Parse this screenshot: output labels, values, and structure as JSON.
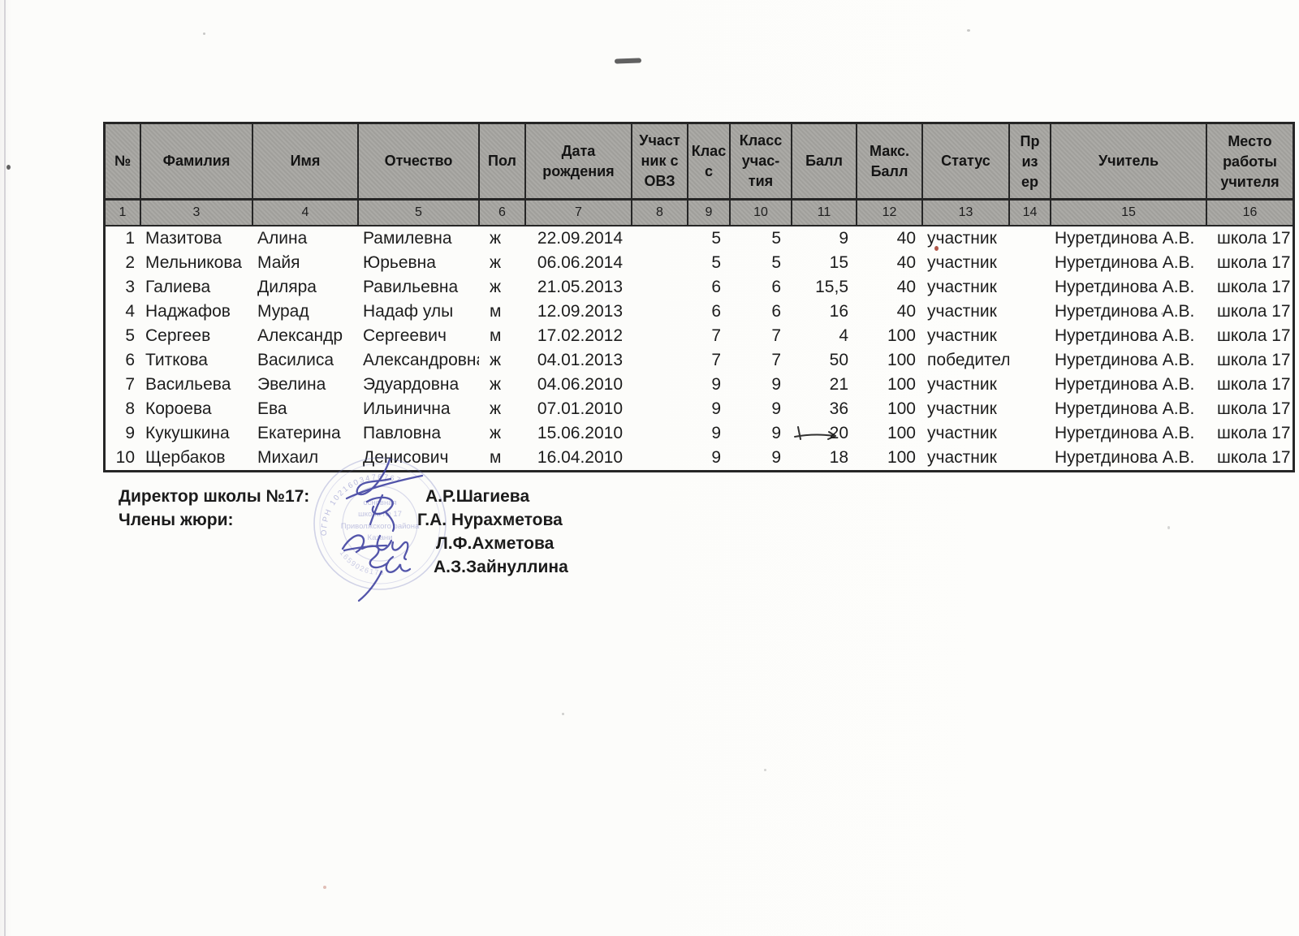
{
  "table": {
    "columns": [
      {
        "id": "n",
        "label": "№",
        "num": "1"
      },
      {
        "id": "surname",
        "label": "Фамилия",
        "num": "3"
      },
      {
        "id": "name",
        "label": "Имя",
        "num": "4"
      },
      {
        "id": "patronymic",
        "label": "Отчество",
        "num": "5"
      },
      {
        "id": "gender",
        "label": "Пол",
        "num": "6"
      },
      {
        "id": "birth_date",
        "label": "Дата рождения",
        "num": "7"
      },
      {
        "id": "ovz",
        "label": "Участник с ОВЗ",
        "num": "8"
      },
      {
        "id": "grade",
        "label": "Класс",
        "num": "9"
      },
      {
        "id": "participation_grade",
        "label": "Класс учас-тия",
        "num": "10"
      },
      {
        "id": "score",
        "label": "Балл",
        "num": "11"
      },
      {
        "id": "max_score",
        "label": "Макс. Балл",
        "num": "12"
      },
      {
        "id": "status",
        "label": "Статус",
        "num": "13"
      },
      {
        "id": "prize",
        "label": "Призер",
        "num": "14"
      },
      {
        "id": "teacher",
        "label": "Учитель",
        "num": "15"
      },
      {
        "id": "workplace",
        "label": "Место работы учителя",
        "num": "16"
      }
    ],
    "rows": [
      {
        "n": "1",
        "surname": "Мазитова",
        "name": "Алина",
        "patronymic": "Рамилевна",
        "gender": "ж",
        "birth_date": "22.09.2014",
        "ovz": "",
        "grade": "5",
        "participation_grade": "5",
        "score": "9",
        "max_score": "40",
        "status": "участник",
        "prize": "",
        "teacher": "Нуретдинова А.В.",
        "workplace": "школа 17"
      },
      {
        "n": "2",
        "surname": "Мельникова",
        "name": "Майя",
        "patronymic": "Юрьевна",
        "gender": "ж",
        "birth_date": "06.06.2014",
        "ovz": "",
        "grade": "5",
        "participation_grade": "5",
        "score": "15",
        "max_score": "40",
        "status": "участник",
        "prize": "",
        "teacher": "Нуретдинова А.В.",
        "workplace": "школа 17"
      },
      {
        "n": "3",
        "surname": "Галиева",
        "name": "Диляра",
        "patronymic": "Равильевна",
        "gender": "ж",
        "birth_date": "21.05.2013",
        "ovz": "",
        "grade": "6",
        "participation_grade": "6",
        "score": "15,5",
        "max_score": "40",
        "status": "участник",
        "prize": "",
        "teacher": "Нуретдинова А.В.",
        "workplace": "школа 17"
      },
      {
        "n": "4",
        "surname": "Наджафов",
        "name": "Мурад",
        "patronymic": "Надаф улы",
        "gender": "м",
        "birth_date": "12.09.2013",
        "ovz": "",
        "grade": "6",
        "participation_grade": "6",
        "score": "16",
        "max_score": "40",
        "status": "участник",
        "prize": "",
        "teacher": "Нуретдинова А.В.",
        "workplace": "школа 17"
      },
      {
        "n": "5",
        "surname": "Сергеев",
        "name": "Александр",
        "patronymic": "Сергеевич",
        "gender": "м",
        "birth_date": "17.02.2012",
        "ovz": "",
        "grade": "7",
        "participation_grade": "7",
        "score": "4",
        "max_score": "100",
        "status": "участник",
        "prize": "",
        "teacher": "Нуретдинова А.В.",
        "workplace": "школа 17"
      },
      {
        "n": "6",
        "surname": "Титкова",
        "name": "Василиса",
        "patronymic": "Александровна",
        "gender": "ж",
        "birth_date": "04.01.2013",
        "ovz": "",
        "grade": "7",
        "participation_grade": "7",
        "score": "50",
        "max_score": "100",
        "status": "победитель",
        "prize": "",
        "teacher": "Нуретдинова А.В.",
        "workplace": "школа 17"
      },
      {
        "n": "7",
        "surname": "Васильева",
        "name": "Эвелина",
        "patronymic": "Эдуардовна",
        "gender": "ж",
        "birth_date": "04.06.2010",
        "ovz": "",
        "grade": "9",
        "participation_grade": "9",
        "score": "21",
        "max_score": "100",
        "status": "участник",
        "prize": "",
        "teacher": "Нуретдинова А.В.",
        "workplace": "школа 17"
      },
      {
        "n": "8",
        "surname": "Короева",
        "name": "Ева",
        "patronymic": "Ильинична",
        "gender": "ж",
        "birth_date": "07.01.2010",
        "ovz": "",
        "grade": "9",
        "participation_grade": "9",
        "score": "36",
        "max_score": "100",
        "status": "участник",
        "prize": "",
        "teacher": "Нуретдинова А.В.",
        "workplace": "школа 17"
      },
      {
        "n": "9",
        "surname": "Кукушкина",
        "name": "Екатерина",
        "patronymic": "Павловна",
        "gender": "ж",
        "birth_date": "15.06.2010",
        "ovz": "",
        "grade": "9",
        "participation_grade": "9",
        "score": "20",
        "max_score": "100",
        "status": "участник",
        "prize": "",
        "teacher": "Нуретдинова А.В.",
        "workplace": "школа 17"
      },
      {
        "n": "10",
        "surname": "Щербаков",
        "name": "Михаил",
        "patronymic": "Денисович",
        "gender": "м",
        "birth_date": "16.04.2010",
        "ovz": "",
        "grade": "9",
        "participation_grade": "9",
        "score": "18",
        "max_score": "100",
        "status": "участник",
        "prize": "",
        "teacher": "Нуретдинова А.В.",
        "workplace": "школа 17"
      }
    ]
  },
  "signing": {
    "director_label": "Директор школы №17:",
    "director_name": "А.Р.Шагиева",
    "jury_label": "Члены жюри:",
    "jury_names": [
      "Г.А. Нурахметова",
      "Л.Ф.Ахметова",
      "А.З.Зайнуллина"
    ]
  },
  "stamp": {
    "arc_text": "ОГРН 1021603476767",
    "number": "1659026176",
    "lines": [
      "основная",
      "школа № 17",
      "Приволжского района",
      "Казани"
    ]
  },
  "colors": {
    "header_fill": "#a7a5a1",
    "border": "#262626",
    "ink_blue": "#3c3f9f",
    "stamp_blue": "#7478bf"
  }
}
